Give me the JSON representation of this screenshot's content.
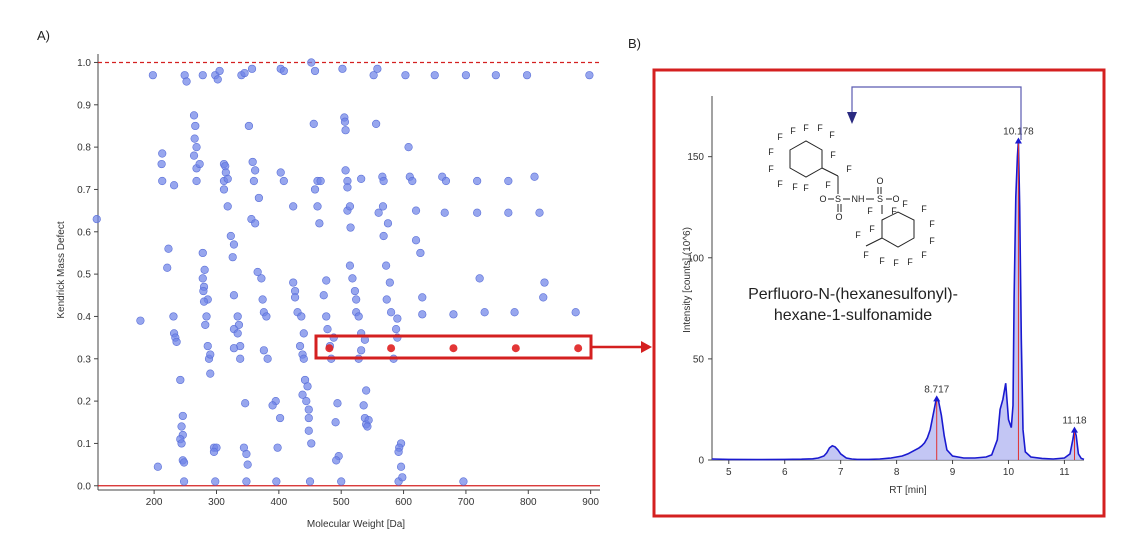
{
  "panel_a_label": "A)",
  "panel_b_label": "B)",
  "compound_name": {
    "line1": "Perfluoro-N-(hexanesulfonyl)-",
    "line2": "hexane-1-sulfonamide"
  },
  "structure_labels": {
    "fluorine": "F",
    "nh": "NH",
    "sulfur": "S",
    "oxygen": "O"
  },
  "colors": {
    "points": "#6f83e8",
    "highlight": "#e02020",
    "box": "#d42020",
    "chromatogram": "#1a1ad0",
    "fill": "#b4b8f0"
  },
  "chart_data": [
    {
      "type": "scatter",
      "xlabel": "Molecular Weight [Da]",
      "ylabel": "Kendrick Mass Defect",
      "xlim": [
        110,
        915
      ],
      "ylim": [
        -0.01,
        1.02
      ],
      "xticks": [
        200,
        300,
        400,
        500,
        600,
        700,
        800,
        900
      ],
      "yticks": [
        "0.0",
        "0.1",
        "0.2",
        "0.3",
        "0.4",
        "0.5",
        "0.6",
        "0.7",
        "0.8",
        "0.9",
        "1.0"
      ],
      "reference_lines": [
        0.0,
        1.0
      ],
      "points": [
        [
          198,
          0.97
        ],
        [
          249,
          0.97
        ],
        [
          252,
          0.955
        ],
        [
          278,
          0.97
        ],
        [
          298,
          0.97
        ],
        [
          302,
          0.96
        ],
        [
          305,
          0.98
        ],
        [
          340,
          0.97
        ],
        [
          345,
          0.975
        ],
        [
          357,
          0.985
        ],
        [
          403,
          0.985
        ],
        [
          408,
          0.98
        ],
        [
          452,
          1.0
        ],
        [
          458,
          0.98
        ],
        [
          502,
          0.985
        ],
        [
          552,
          0.97
        ],
        [
          558,
          0.985
        ],
        [
          603,
          0.97
        ],
        [
          650,
          0.97
        ],
        [
          700,
          0.97
        ],
        [
          748,
          0.97
        ],
        [
          798,
          0.97
        ],
        [
          898,
          0.97
        ],
        [
          264,
          0.875
        ],
        [
          266,
          0.85
        ],
        [
          265,
          0.82
        ],
        [
          268,
          0.8
        ],
        [
          264,
          0.78
        ],
        [
          352,
          0.85
        ],
        [
          456,
          0.855
        ],
        [
          505,
          0.87
        ],
        [
          506,
          0.86
        ],
        [
          507,
          0.84
        ],
        [
          556,
          0.855
        ],
        [
          608,
          0.8
        ],
        [
          213,
          0.785
        ],
        [
          212,
          0.76
        ],
        [
          213,
          0.72
        ],
        [
          268,
          0.75
        ],
        [
          273,
          0.76
        ],
        [
          268,
          0.72
        ],
        [
          312,
          0.76
        ],
        [
          314,
          0.755
        ],
        [
          315,
          0.74
        ],
        [
          312,
          0.72
        ],
        [
          318,
          0.725
        ],
        [
          358,
          0.765
        ],
        [
          362,
          0.745
        ],
        [
          403,
          0.74
        ],
        [
          408,
          0.72
        ],
        [
          462,
          0.72
        ],
        [
          467,
          0.72
        ],
        [
          507,
          0.745
        ],
        [
          510,
          0.72
        ],
        [
          532,
          0.725
        ],
        [
          566,
          0.73
        ],
        [
          568,
          0.72
        ],
        [
          610,
          0.73
        ],
        [
          614,
          0.72
        ],
        [
          662,
          0.73
        ],
        [
          668,
          0.72
        ],
        [
          718,
          0.72
        ],
        [
          768,
          0.72
        ],
        [
          810,
          0.73
        ],
        [
          458,
          0.7
        ],
        [
          360,
          0.72
        ],
        [
          312,
          0.7
        ],
        [
          510,
          0.705
        ],
        [
          108,
          0.63
        ],
        [
          232,
          0.71
        ],
        [
          318,
          0.66
        ],
        [
          368,
          0.68
        ],
        [
          423,
          0.66
        ],
        [
          462,
          0.66
        ],
        [
          510,
          0.65
        ],
        [
          514,
          0.66
        ],
        [
          560,
          0.645
        ],
        [
          567,
          0.66
        ],
        [
          620,
          0.65
        ],
        [
          666,
          0.645
        ],
        [
          718,
          0.645
        ],
        [
          768,
          0.645
        ],
        [
          818,
          0.645
        ],
        [
          323,
          0.59
        ],
        [
          328,
          0.57
        ],
        [
          356,
          0.63
        ],
        [
          362,
          0.62
        ],
        [
          465,
          0.62
        ],
        [
          515,
          0.61
        ],
        [
          568,
          0.59
        ],
        [
          575,
          0.62
        ],
        [
          620,
          0.58
        ],
        [
          223,
          0.56
        ],
        [
          278,
          0.55
        ],
        [
          326,
          0.54
        ],
        [
          281,
          0.51
        ],
        [
          221,
          0.515
        ],
        [
          366,
          0.505
        ],
        [
          372,
          0.49
        ],
        [
          423,
          0.48
        ],
        [
          426,
          0.46
        ],
        [
          476,
          0.485
        ],
        [
          514,
          0.52
        ],
        [
          518,
          0.49
        ],
        [
          572,
          0.52
        ],
        [
          578,
          0.48
        ],
        [
          627,
          0.55
        ],
        [
          722,
          0.49
        ],
        [
          826,
          0.48
        ],
        [
          278,
          0.49
        ],
        [
          280,
          0.47
        ],
        [
          279,
          0.46
        ],
        [
          286,
          0.44
        ],
        [
          280,
          0.435
        ],
        [
          328,
          0.45
        ],
        [
          374,
          0.44
        ],
        [
          426,
          0.445
        ],
        [
          472,
          0.45
        ],
        [
          522,
          0.46
        ],
        [
          524,
          0.44
        ],
        [
          573,
          0.44
        ],
        [
          630,
          0.445
        ],
        [
          824,
          0.445
        ],
        [
          178,
          0.39
        ],
        [
          231,
          0.4
        ],
        [
          284,
          0.4
        ],
        [
          282,
          0.38
        ],
        [
          334,
          0.4
        ],
        [
          336,
          0.38
        ],
        [
          376,
          0.41
        ],
        [
          380,
          0.4
        ],
        [
          430,
          0.41
        ],
        [
          436,
          0.4
        ],
        [
          476,
          0.4
        ],
        [
          524,
          0.41
        ],
        [
          528,
          0.4
        ],
        [
          580,
          0.41
        ],
        [
          590,
          0.395
        ],
        [
          630,
          0.405
        ],
        [
          680,
          0.405
        ],
        [
          730,
          0.41
        ],
        [
          778,
          0.41
        ],
        [
          876,
          0.41
        ],
        [
          232,
          0.36
        ],
        [
          234,
          0.35
        ],
        [
          236,
          0.34
        ],
        [
          328,
          0.37
        ],
        [
          334,
          0.36
        ],
        [
          338,
          0.33
        ],
        [
          440,
          0.36
        ],
        [
          478,
          0.37
        ],
        [
          488,
          0.35
        ],
        [
          532,
          0.36
        ],
        [
          538,
          0.345
        ],
        [
          588,
          0.37
        ],
        [
          590,
          0.35
        ],
        [
          286,
          0.33
        ],
        [
          288,
          0.3
        ],
        [
          290,
          0.31
        ],
        [
          328,
          0.325
        ],
        [
          338,
          0.3
        ],
        [
          376,
          0.32
        ],
        [
          382,
          0.3
        ],
        [
          434,
          0.33
        ],
        [
          438,
          0.31
        ],
        [
          440,
          0.3
        ],
        [
          482,
          0.33
        ],
        [
          484,
          0.3
        ],
        [
          528,
          0.3
        ],
        [
          532,
          0.32
        ],
        [
          584,
          0.3
        ],
        [
          290,
          0.265
        ],
        [
          242,
          0.25
        ],
        [
          442,
          0.25
        ],
        [
          446,
          0.235
        ],
        [
          540,
          0.225
        ],
        [
          444,
          0.2
        ],
        [
          346,
          0.195
        ],
        [
          395,
          0.2
        ],
        [
          438,
          0.215
        ],
        [
          390,
          0.19
        ],
        [
          494,
          0.195
        ],
        [
          536,
          0.19
        ],
        [
          246,
          0.165
        ],
        [
          244,
          0.14
        ],
        [
          246,
          0.12
        ],
        [
          242,
          0.11
        ],
        [
          244,
          0.1
        ],
        [
          538,
          0.16
        ],
        [
          540,
          0.145
        ],
        [
          544,
          0.155
        ],
        [
          542,
          0.14
        ],
        [
          448,
          0.18
        ],
        [
          448,
          0.16
        ],
        [
          402,
          0.16
        ],
        [
          448,
          0.13
        ],
        [
          491,
          0.15
        ],
        [
          296,
          0.09
        ],
        [
          300,
          0.09
        ],
        [
          296,
          0.08
        ],
        [
          344,
          0.09
        ],
        [
          348,
          0.075
        ],
        [
          398,
          0.09
        ],
        [
          452,
          0.1
        ],
        [
          496,
          0.07
        ],
        [
          492,
          0.06
        ],
        [
          596,
          0.1
        ],
        [
          593,
          0.09
        ],
        [
          592,
          0.08
        ],
        [
          206,
          0.045
        ],
        [
          246,
          0.06
        ],
        [
          248,
          0.055
        ],
        [
          350,
          0.05
        ],
        [
          596,
          0.045
        ],
        [
          248,
          0.01
        ],
        [
          298,
          0.01
        ],
        [
          348,
          0.01
        ],
        [
          396,
          0.01
        ],
        [
          450,
          0.01
        ],
        [
          500,
          0.01
        ],
        [
          592,
          0.01
        ],
        [
          598,
          0.02
        ],
        [
          696,
          0.01
        ]
      ],
      "highlighted_points": [
        [
          481,
          0.325
        ],
        [
          580,
          0.325
        ],
        [
          680,
          0.325
        ],
        [
          780,
          0.325
        ],
        [
          880,
          0.325
        ]
      ]
    },
    {
      "type": "line",
      "xlabel": "RT [min]",
      "ylabel": "Intensity [counts] (10^6)",
      "xlim": [
        4.7,
        11.35
      ],
      "ylim": [
        0,
        180
      ],
      "xticks": [
        5,
        6,
        7,
        8,
        9,
        10,
        11
      ],
      "yticks": [
        0,
        50,
        100,
        150
      ],
      "x": [
        4.7,
        5.0,
        5.5,
        6.0,
        6.3,
        6.5,
        6.6,
        6.7,
        6.75,
        6.8,
        6.85,
        6.9,
        6.95,
        7.0,
        7.1,
        7.2,
        7.3,
        7.5,
        7.7,
        7.9,
        8.1,
        8.2,
        8.3,
        8.4,
        8.45,
        8.5,
        8.55,
        8.6,
        8.65,
        8.7,
        8.72,
        8.75,
        8.8,
        8.85,
        8.9,
        9.0,
        9.2,
        9.4,
        9.6,
        9.7,
        9.8,
        9.85,
        9.9,
        9.95,
        10.0,
        10.05,
        10.08,
        10.1,
        10.13,
        10.16,
        10.178,
        10.2,
        10.23,
        10.26,
        10.3,
        10.4,
        10.6,
        10.8,
        11.0,
        11.1,
        11.15,
        11.18,
        11.21,
        11.25,
        11.3,
        11.35
      ],
      "y": [
        0.5,
        0.3,
        0.2,
        0.3,
        0.4,
        0.6,
        1.0,
        2.0,
        3.5,
        6.0,
        7.0,
        6.5,
        5.0,
        3.0,
        1.0,
        0.5,
        0.3,
        0.3,
        0.5,
        1.0,
        2.0,
        3.0,
        4.5,
        6.0,
        7.0,
        8.5,
        11.0,
        15.0,
        22.0,
        29.0,
        30.5,
        29.0,
        22.0,
        12.0,
        5.0,
        2.0,
        1.0,
        1.0,
        1.5,
        2.5,
        10.0,
        25.0,
        30.0,
        38.0,
        20.0,
        16.0,
        27.0,
        80.0,
        130.0,
        150.0,
        158.0,
        125.0,
        60.0,
        15.0,
        4.0,
        1.5,
        0.8,
        0.5,
        1.0,
        3.0,
        10.0,
        15.0,
        12.0,
        3.0,
        0.8,
        0.3
      ],
      "peak_labels": [
        {
          "x": 8.717,
          "y": 30.5,
          "label": "8.717"
        },
        {
          "x": 10.178,
          "y": 158.0,
          "label": "10.178"
        },
        {
          "x": 11.18,
          "y": 15.0,
          "label": "11.18"
        }
      ]
    }
  ]
}
